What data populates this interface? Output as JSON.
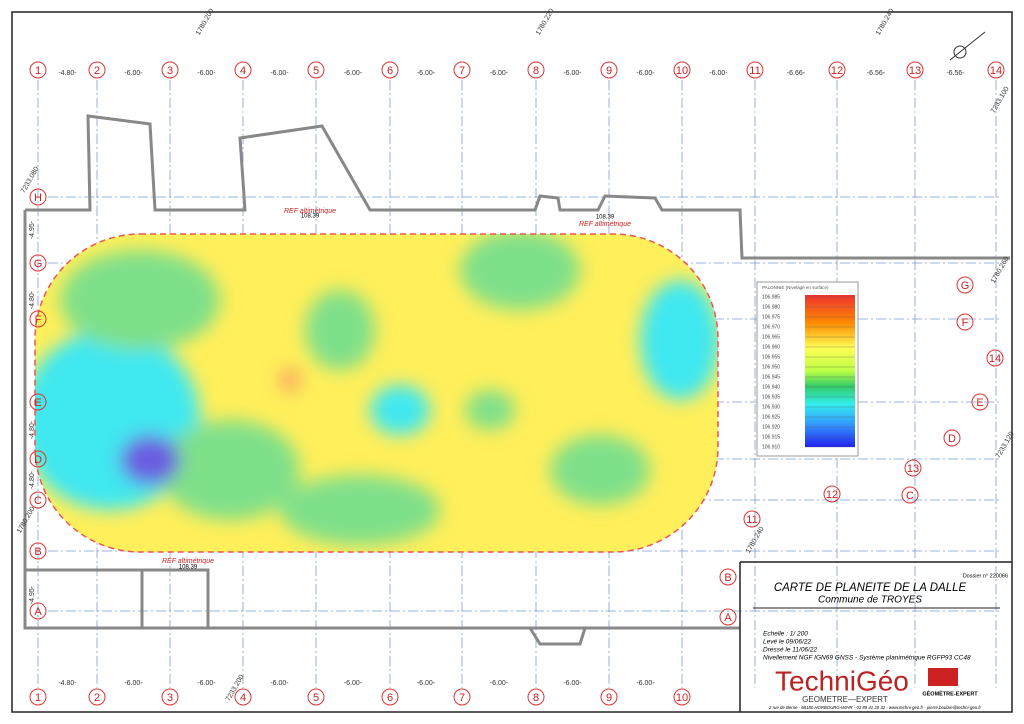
{
  "grid": {
    "columns": [
      "1",
      "2",
      "3",
      "4",
      "5",
      "6",
      "7",
      "8",
      "9",
      "10",
      "11",
      "12",
      "13",
      "14"
    ],
    "rows": [
      "A",
      "B",
      "C",
      "D",
      "E",
      "F",
      "G",
      "H"
    ],
    "spacings_top": [
      "-4.80-",
      "-6.00-",
      "-6.00-",
      "-6.00-",
      "-6.00-",
      "-6.00-",
      "-6.00-",
      "-6.00-",
      "-6.00-",
      "-6.00-",
      "-6.66-",
      "-6.56-",
      "-6.56-"
    ],
    "spacings_bottom": [
      "-4.80-",
      "-6.00-",
      "-6.00-",
      "-6.00-",
      "-6.00-",
      "-6.00-",
      "-6.00-",
      "-6.00-",
      "-6.00-"
    ],
    "spacings_left": [
      "-4.95-",
      "-4.80-",
      "-4.80-",
      "-4.80-",
      "-4.95-"
    ]
  },
  "coordinates": [
    "1780.200",
    "1780.220",
    "1780.240",
    "7233.080",
    "7233.100",
    "7233.120",
    "1780.200",
    "1780.240",
    "1780.260",
    "7233.200"
  ],
  "references": [
    {
      "label": "REF altimétrique",
      "value": "108.39"
    },
    {
      "label": "REF altimétrique",
      "value": "108.39"
    },
    {
      "label": "REF altimétrique",
      "value": "108.39"
    }
  ],
  "legend": {
    "title": "PALONNIE (Nivelage en surface)",
    "values": [
      "106.985",
      "106.980",
      "106.975",
      "106.970",
      "106.965",
      "106.960",
      "106.955",
      "106.950",
      "106.945",
      "106.940",
      "106.935",
      "106.930",
      "106.925",
      "106.920",
      "106.915",
      "106.910"
    ]
  },
  "title_block": {
    "dossier": "Dossier n° 220066",
    "title": "CARTE DE PLANEITE DE LA DALLE",
    "subtitle": "Commune de TROYES",
    "scale": "Echelle : 1/ 200",
    "survey": "Levé le  09/06/22",
    "drawn": "Dressé le  11/06/22",
    "leveling": "Nivellement NGF IGN69 GNSS - Système planimétrique RGFP93 CC48",
    "logo": "TechniGéo",
    "logo_sub": "GEOMETRE—EXPERT",
    "badge": "GÉOMÈTRE-EXPERT",
    "address": "2 rue de Berne - 68180 HORBOURG-WIHR - 03 89 41 20 32 - www.techni-geo.fr - pierre.boulzie@techni-geo.fr"
  }
}
